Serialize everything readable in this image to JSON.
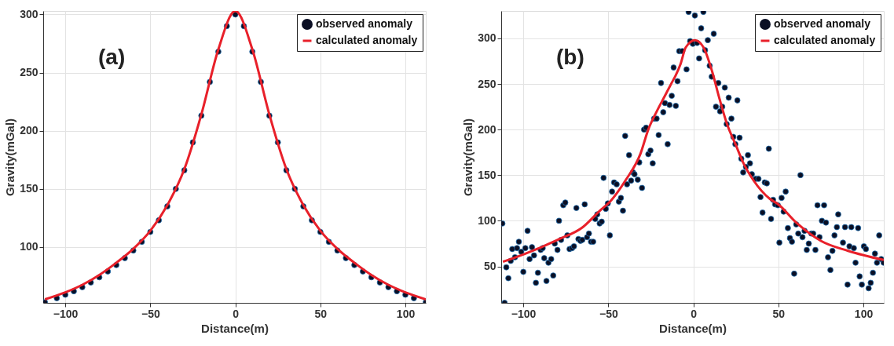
{
  "chart_data": [
    {
      "type": "scatter",
      "xlabel": "Distance(m)",
      "ylabel": "Gravity(mGal)",
      "annotations": [
        "(a)"
      ],
      "xlim": [
        -113,
        112
      ],
      "ylim": [
        52,
        303
      ],
      "xticks": [
        -100,
        -50,
        0,
        50,
        100
      ],
      "yticks": [
        100,
        150,
        200,
        250,
        300
      ],
      "grid": true,
      "legend": "top right",
      "series": [
        {
          "name": "observed anomaly",
          "color": "#0b0f24",
          "marker": "circle",
          "x": [
            -112,
            -105,
            -100,
            -95,
            -90,
            -85,
            -80,
            -75,
            -70,
            -65,
            -60,
            -55,
            -50,
            -45,
            -40,
            -35,
            -30,
            -25,
            -20,
            -15,
            -10,
            -5,
            0,
            5,
            10,
            15,
            20,
            25,
            30,
            35,
            40,
            45,
            50,
            55,
            60,
            65,
            70,
            75,
            80,
            85,
            90,
            95,
            100,
            105,
            112
          ],
          "values": [
            52.5,
            56,
            59,
            62,
            65.5,
            69.5,
            74,
            79,
            84.5,
            90.5,
            97,
            104.5,
            113,
            123,
            135,
            150,
            166,
            190,
            213,
            242,
            268,
            290,
            300,
            290,
            268,
            242,
            213,
            190,
            166,
            150,
            135,
            123,
            113,
            104.5,
            97,
            90.5,
            84.5,
            79,
            74,
            69.5,
            65.5,
            62,
            59,
            56,
            52.5
          ]
        },
        {
          "name": "calculated anomaly",
          "type": "line",
          "color": "#e8202a",
          "line_style": "solid",
          "marker": "none",
          "x": [
            -112,
            -100,
            -90,
            -80,
            -70,
            -60,
            -50,
            -40,
            -30,
            -20,
            -10,
            0,
            10,
            20,
            30,
            40,
            50,
            60,
            70,
            80,
            90,
            100,
            112
          ],
          "values": [
            55,
            61,
            67.5,
            76,
            86.5,
            98.5,
            114,
            136,
            167,
            214,
            270,
            303,
            270,
            214,
            167,
            136,
            114,
            98.5,
            86.5,
            76,
            67.5,
            61,
            55
          ]
        }
      ]
    },
    {
      "type": "scatter",
      "xlabel": "Distance(m)",
      "ylabel": "Gravity(mGal)",
      "annotations": [
        "(b)"
      ],
      "xlim": [
        -113,
        112
      ],
      "ylim": [
        10,
        330
      ],
      "xticks": [
        -100,
        -50,
        0,
        50,
        100
      ],
      "yticks": [
        50,
        100,
        150,
        200,
        250,
        300
      ],
      "grid": true,
      "legend": "top right",
      "series": [
        {
          "name": "observed anomaly",
          "color": "#0b0f24",
          "marker": "circle",
          "x": [
            -112.3,
            -111,
            -110,
            -108.8,
            -107.4,
            -106.5,
            -104.9,
            -103.7,
            -102.6,
            -101.2,
            -100,
            -98.8,
            -97.5,
            -96.3,
            -94.9,
            -93.7,
            -92.6,
            -91.4,
            -89.8,
            -88.6,
            -87.7,
            -86.4,
            -85.2,
            -83.6,
            -82.4,
            -81.5,
            -79.9,
            -79,
            -77.8,
            -76.5,
            -75.3,
            -74.1,
            -72.8,
            -71.3,
            -70.2,
            -68.8,
            -67.6,
            -66.4,
            -65.3,
            -63.9,
            -62.5,
            -61.4,
            -60.2,
            -58.9,
            -57.7,
            -56.5,
            -55.1,
            -53.9,
            -52.8,
            -51.5,
            -50.3,
            -49.1,
            -47.8,
            -46.6,
            -45.1,
            -43.8,
            -42.6,
            -41.4,
            -40.1,
            -39,
            -37.8,
            -36.6,
            -35.5,
            -34.6,
            -32.7,
            -31.8,
            -30.2,
            -29,
            -27.8,
            -26.5,
            -25.2,
            -23.9,
            -23.1,
            -21.6,
            -20.4,
            -19,
            -17.7,
            -16.7,
            -15.1,
            -14,
            -12.7,
            -11.6,
            -10.3,
            -9.3,
            -8.3,
            -6.5,
            -4,
            -2.8,
            -1.9,
            -0.3,
            0.9,
            2.2,
            3.4,
            4.6,
            5.9,
            6.9,
            8.5,
            9.6,
            10.8,
            12,
            13.3,
            14.7,
            15.7,
            17,
            18.5,
            19.6,
            20.8,
            22.4,
            23.5,
            24.7,
            25.9,
            27.2,
            28.2,
            29.3,
            30.9,
            32.1,
            33.3,
            34.4,
            36.7,
            38.3,
            39.5,
            40.7,
            42,
            43.2,
            44.4,
            45.7,
            46.9,
            48.1,
            49.7,
            50.6,
            51.9,
            53.1,
            54.3,
            55.6,
            56.8,
            58,
            59.3,
            60.5,
            61.7,
            63,
            64.2,
            65.4,
            66.7,
            67.9,
            69.4,
            70.5,
            71.8,
            73,
            74.2,
            75.6,
            76.9,
            78,
            79.2,
            80.6,
            81.8,
            83,
            84.4,
            85.2,
            88,
            89.2,
            90.7,
            91.8,
            92.9,
            94.4,
            95.4,
            96.9,
            97.8,
            99.1,
            100.3,
            101.5,
            103.1,
            104.3,
            105.6,
            106.8,
            108,
            109.3,
            110.5,
            111.9
          ],
          "values": [
            97,
            10,
            49,
            37,
            56,
            69,
            60,
            70,
            77,
            66,
            44,
            70,
            89,
            58,
            71,
            62,
            32,
            43,
            68,
            70,
            59,
            34,
            54,
            58,
            40,
            75,
            68,
            100,
            79,
            117,
            120,
            84,
            69,
            70,
            72,
            114,
            80,
            78,
            79,
            118,
            82,
            86,
            77,
            77,
            102,
            107,
            97,
            99,
            147,
            113,
            119,
            84,
            132,
            142,
            140,
            121,
            125,
            111,
            193,
            140,
            172,
            144,
            153,
            151,
            145,
            164,
            136,
            200,
            202,
            173,
            177,
            163,
            212,
            212,
            194,
            251,
            219,
            229,
            184,
            227,
            237,
            268,
            226,
            253,
            286,
            286,
            266,
            329,
            297,
            294,
            325,
            295,
            278,
            311,
            329,
            287,
            298,
            270,
            258,
            305,
            225,
            251,
            220,
            225,
            246,
            206,
            235,
            212,
            192,
            184,
            232,
            191,
            168,
            153,
            159,
            172,
            163,
            151,
            146,
            146,
            126,
            109,
            142,
            141,
            179,
            102,
            123,
            118,
            117,
            76,
            125,
            110,
            132,
            92,
            81,
            77,
            42,
            96,
            86,
            150,
            82,
            89,
            68,
            75,
            86,
            86,
            68,
            117,
            82,
            100,
            117,
            98,
            60,
            46,
            67,
            84,
            93,
            107,
            76,
            93,
            30,
            72,
            93,
            70,
            54,
            92,
            39,
            30,
            72,
            69,
            26,
            32,
            43,
            64,
            54,
            84,
            58,
            54
          ]
        },
        {
          "name": "calculated anomaly",
          "type": "line",
          "color": "#e8202a",
          "line_style": "solid",
          "marker": "none",
          "x": [
            -112,
            -100,
            -80,
            -65,
            -55,
            -49,
            -40,
            -31,
            -26.5,
            -21.5,
            -17,
            -12.5,
            -10.5,
            -7.5,
            -4.5,
            1,
            6,
            11,
            15.5,
            20,
            25,
            29,
            35.5,
            45,
            50,
            60,
            75,
            91,
            112
          ],
          "values": [
            55,
            63,
            79,
            93,
            111,
            121,
            144,
            174,
            200,
            220,
            236,
            252,
            259,
            272,
            290,
            298,
            290,
            264,
            233,
            205,
            183,
            165,
            144,
            124,
            118,
            99,
            78,
            67,
            57
          ]
        }
      ]
    }
  ]
}
